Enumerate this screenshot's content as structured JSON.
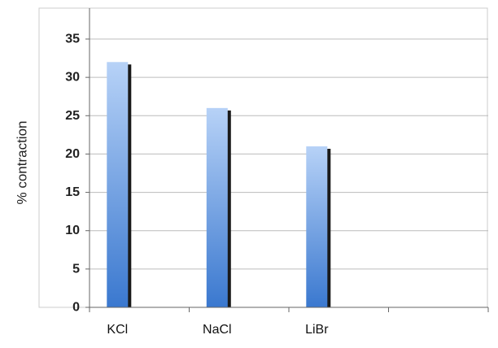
{
  "chart_data": {
    "type": "bar",
    "title": "",
    "xlabel": "",
    "ylabel": "% contraction",
    "categories": [
      "KCl",
      "NaCl",
      "LiBr",
      ""
    ],
    "values": [
      32,
      26,
      21,
      null
    ],
    "ylim": [
      0,
      35
    ],
    "yticks": [
      0,
      5,
      10,
      15,
      20,
      25,
      30,
      35
    ],
    "grid": true,
    "legend": "none",
    "colors": {
      "bar_top": "#b7d2f7",
      "bar_bottom": "#3a78cf",
      "bar_shadow": "#1a1a1a",
      "grid": "#bcbcbc",
      "axis": "#666666"
    }
  }
}
